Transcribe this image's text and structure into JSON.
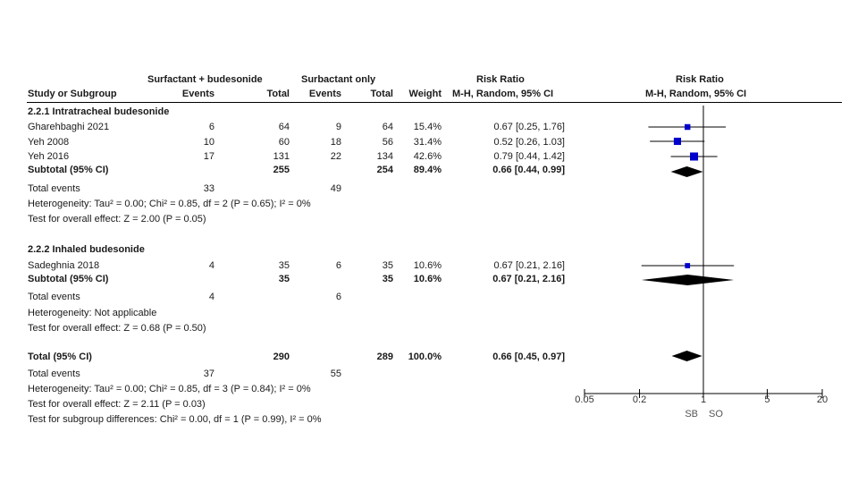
{
  "header": {
    "group1": "Surfactant + budesonide",
    "group2": "Surbactant only",
    "rr_title": "Risk Ratio",
    "rr_title_plot": "Risk Ratio",
    "col_study": "Study or Subgroup",
    "col_events1": "Events",
    "col_total1": "Total",
    "col_events2": "Events",
    "col_total2": "Total",
    "col_weight": "Weight",
    "col_method": "M-H, Random, 95% CI",
    "col_method_plot": "M-H, Random, 95% CI"
  },
  "subgroup1": {
    "title": "2.2.1 Intratracheal budesonide",
    "studies": [
      {
        "name": "Gharehbaghi 2021",
        "e1": "6",
        "t1": "64",
        "e2": "9",
        "t2": "64",
        "weight": "15.4%",
        "ci": "0.67 [0.25, 1.76]"
      },
      {
        "name": "Yeh 2008",
        "e1": "10",
        "t1": "60",
        "e2": "18",
        "t2": "56",
        "weight": "31.4%",
        "ci": "0.52 [0.26, 1.03]"
      },
      {
        "name": "Yeh 2016",
        "e1": "17",
        "t1": "131",
        "e2": "22",
        "t2": "134",
        "weight": "42.6%",
        "ci": "0.79 [0.44, 1.42]"
      }
    ],
    "subtotal": {
      "label": "Subtotal (95% CI)",
      "t1": "255",
      "t2": "254",
      "weight": "89.4%",
      "ci": "0.66 [0.44, 0.99]"
    },
    "events": {
      "label": "Total events",
      "e1": "33",
      "e2": "49"
    },
    "heterogeneity": "Heterogeneity: Tau² = 0.00; Chi² = 0.85, df = 2 (P = 0.65); I² = 0%",
    "overall": "Test for overall effect: Z = 2.00 (P = 0.05)"
  },
  "subgroup2": {
    "title": "2.2.2 Inhaled budesonide",
    "studies": [
      {
        "name": "Sadeghnia 2018",
        "e1": "4",
        "t1": "35",
        "e2": "6",
        "t2": "35",
        "weight": "10.6%",
        "ci": "0.67 [0.21, 2.16]"
      }
    ],
    "subtotal": {
      "label": "Subtotal (95% CI)",
      "t1": "35",
      "t2": "35",
      "weight": "10.6%",
      "ci": "0.67 [0.21, 2.16]"
    },
    "events": {
      "label": "Total events",
      "e1": "4",
      "e2": "6"
    },
    "heterogeneity": "Heterogeneity: Not applicable",
    "overall": "Test for overall effect: Z = 0.68 (P = 0.50)"
  },
  "total": {
    "label": "Total (95% CI)",
    "t1": "290",
    "t2": "289",
    "weight": "100.0%",
    "ci": "0.66 [0.45, 0.97]",
    "events": {
      "label": "Total events",
      "e1": "37",
      "e2": "55"
    },
    "heterogeneity": "Heterogeneity: Tau² = 0.00; Chi² = 0.85, df = 3 (P = 0.84); I² = 0%",
    "overall": "Test for overall effect: Z = 2.11 (P = 0.03)",
    "subgroup_diff": "Test for subgroup differences: Chi² = 0.00, df = 1 (P = 0.99), I² = 0%"
  },
  "chart_data": {
    "type": "forest",
    "scale": "log",
    "xlim": [
      0.05,
      20
    ],
    "ticks": [
      {
        "value": 0.05,
        "label": "0.05"
      },
      {
        "value": 0.2,
        "label": "0.2"
      },
      {
        "value": 1,
        "label": "1"
      },
      {
        "value": 5,
        "label": "5"
      },
      {
        "value": 20,
        "label": "20"
      }
    ],
    "favours_left": "SB",
    "favours_right": "SO",
    "studies": [
      {
        "name": "Gharehbaghi 2021",
        "rr": 0.67,
        "lo": 0.25,
        "hi": 1.76,
        "weight": 15.4
      },
      {
        "name": "Yeh 2008",
        "rr": 0.52,
        "lo": 0.26,
        "hi": 1.03,
        "weight": 31.4
      },
      {
        "name": "Yeh 2016",
        "rr": 0.79,
        "lo": 0.44,
        "hi": 1.42,
        "weight": 42.6
      },
      {
        "name": "Sadeghnia 2018",
        "rr": 0.67,
        "lo": 0.21,
        "hi": 2.16,
        "weight": 10.6
      }
    ],
    "pooled": [
      {
        "name": "Subtotal 2.2.1",
        "rr": 0.66,
        "lo": 0.44,
        "hi": 0.99
      },
      {
        "name": "Subtotal 2.2.2",
        "rr": 0.67,
        "lo": 0.21,
        "hi": 2.16
      },
      {
        "name": "Total",
        "rr": 0.66,
        "lo": 0.45,
        "hi": 0.97
      }
    ],
    "colors": {
      "study_marker": "#0000cc",
      "diamond": "#000000",
      "line": "#000000"
    }
  }
}
